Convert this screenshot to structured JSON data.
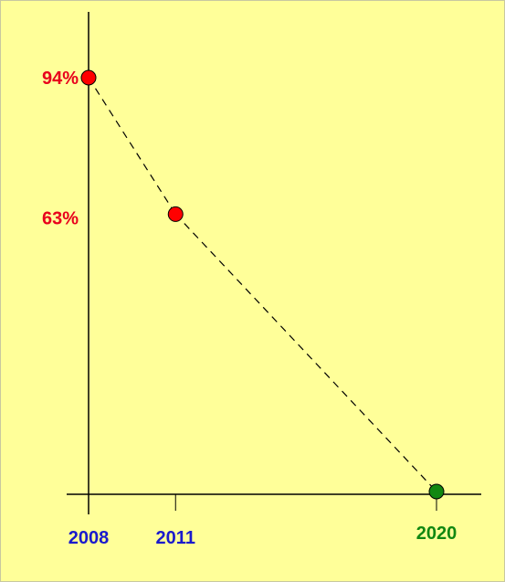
{
  "chart_data": {
    "type": "scatter",
    "points": [
      {
        "x": 2008,
        "y": 94,
        "label": "94%",
        "x_label": "2008",
        "color": "#ff0000",
        "label_color": "#e8001c",
        "x_label_color": "#1a1acc"
      },
      {
        "x": 2011,
        "y": 63,
        "label": "63%",
        "x_label": "2011",
        "color": "#ff0000",
        "label_color": "#e8001c",
        "x_label_color": "#1a1acc"
      },
      {
        "x": 2020,
        "y": 0,
        "label": "",
        "x_label": "2020",
        "color": "#118811",
        "label_color": "#118811",
        "x_label_color": "#118811"
      }
    ],
    "connector": "dashed",
    "xlim": [
      2008,
      2020
    ],
    "ylim": [
      0,
      94
    ],
    "grid": false,
    "background": "#ffff99"
  }
}
